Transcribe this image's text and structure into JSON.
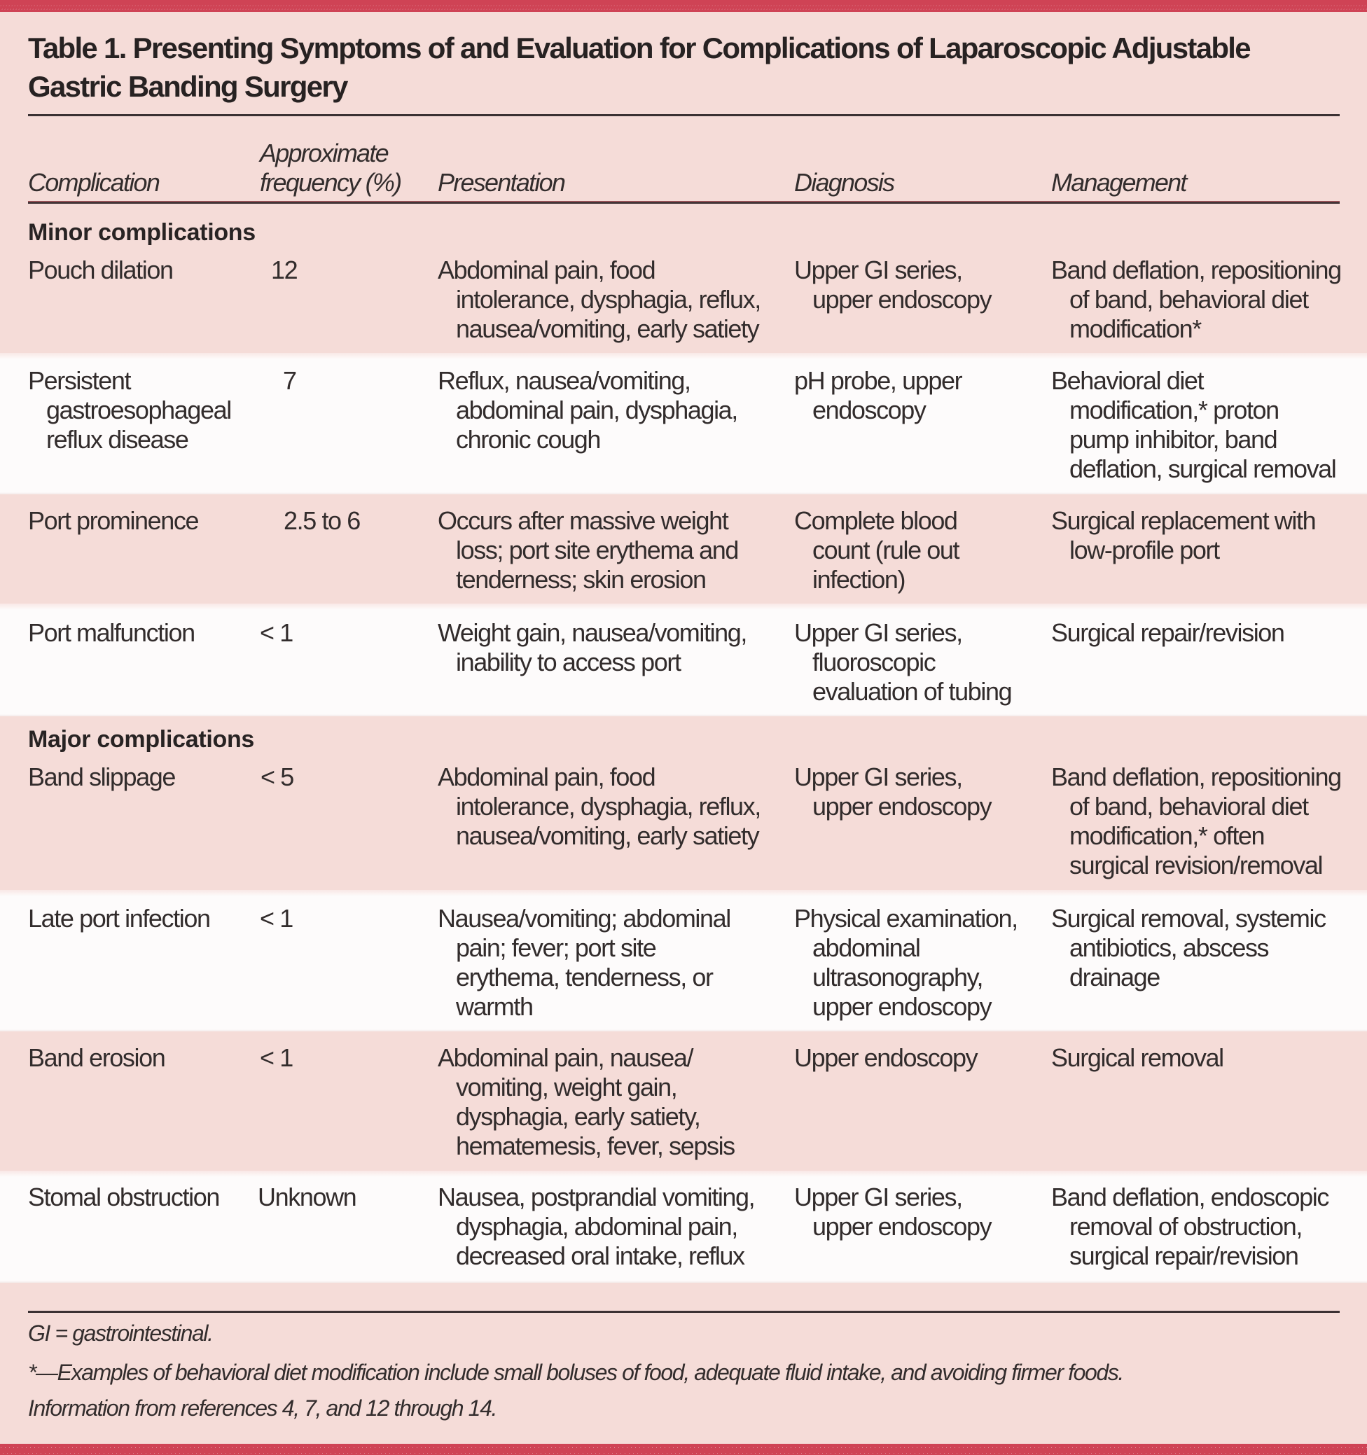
{
  "title": {
    "lines": [
      "Table 1. Presenting Symptoms of and Evaluation for Complications of Laparoscopic Adjustable",
      "Gastric Banding Surgery"
    ]
  },
  "columns": [
    {
      "id": "complication",
      "lines": [
        "Complication"
      ]
    },
    {
      "id": "frequency",
      "lines": [
        "Approximate",
        "frequency (%)"
      ]
    },
    {
      "id": "presentation",
      "lines": [
        "Presentation"
      ]
    },
    {
      "id": "diagnosis",
      "lines": [
        "Diagnosis"
      ]
    },
    {
      "id": "management",
      "lines": [
        "Management"
      ]
    }
  ],
  "sections": [
    {
      "label": "Minor complications",
      "rows": [
        {
          "complication": [
            "Pouch dilation"
          ],
          "frequency": "12",
          "presentation": [
            "Abdominal pain, food",
            "intolerance, dysphagia, reflux,",
            "nausea/vomiting, early satiety"
          ],
          "diagnosis": [
            "Upper GI series,",
            "upper endoscopy"
          ],
          "management": [
            "Band deflation, repositioning",
            "of band, behavioral diet",
            "modification*"
          ]
        },
        {
          "complication": [
            "Persistent",
            "gastroesophageal",
            "reflux disease"
          ],
          "frequency": "7",
          "presentation": [
            "Reflux, nausea/vomiting,",
            "abdominal pain, dysphagia,",
            "chronic cough"
          ],
          "diagnosis": [
            "pH probe, upper",
            "endoscopy"
          ],
          "management": [
            "Behavioral diet",
            "modification,* proton",
            "pump inhibitor, band",
            "deflation, surgical removal"
          ]
        },
        {
          "complication": [
            "Port prominence"
          ],
          "frequency": "2.5 to 6",
          "presentation": [
            "Occurs after massive weight",
            "loss; port site erythema and",
            "tenderness; skin erosion"
          ],
          "diagnosis": [
            "Complete blood",
            "count (rule out",
            "infection)"
          ],
          "management": [
            "Surgical replacement with",
            "low-profile port"
          ]
        },
        {
          "complication": [
            "Port malfunction"
          ],
          "frequency": "< 1",
          "presentation": [
            "Weight gain, nausea/vomiting,",
            "inability to access port"
          ],
          "diagnosis": [
            "Upper GI series,",
            "fluoroscopic",
            "evaluation of tubing"
          ],
          "management": [
            "Surgical repair/revision"
          ]
        }
      ]
    },
    {
      "label": "Major complications",
      "rows": [
        {
          "complication": [
            "Band slippage"
          ],
          "frequency": "< 5",
          "presentation": [
            "Abdominal pain, food",
            "intolerance, dysphagia, reflux,",
            "nausea/vomiting, early satiety"
          ],
          "diagnosis": [
            "Upper GI series,",
            "upper endoscopy"
          ],
          "management": [
            "Band deflation, repositioning",
            "of band, behavioral diet",
            "modification,* often",
            "surgical revision/removal"
          ]
        },
        {
          "complication": [
            "Late port infection"
          ],
          "frequency": "< 1",
          "presentation": [
            "Nausea/vomiting; abdominal",
            "pain; fever; port site",
            "erythema, tenderness, or",
            "warmth"
          ],
          "diagnosis": [
            "Physical examination,",
            "abdominal",
            "ultrasonography,",
            "upper endoscopy"
          ],
          "management": [
            "Surgical removal, systemic",
            "antibiotics, abscess",
            "drainage"
          ]
        },
        {
          "complication": [
            "Band erosion"
          ],
          "frequency": "< 1",
          "presentation": [
            "Abdominal pain, nausea/",
            "vomiting, weight gain,",
            "dysphagia, early satiety,",
            "hematemesis, fever, sepsis"
          ],
          "diagnosis": [
            "Upper endoscopy"
          ],
          "management": [
            "Surgical removal"
          ]
        },
        {
          "complication": [
            "Stomal obstruction"
          ],
          "frequency": "Unknown",
          "presentation": [
            "Nausea, postprandial vomiting,",
            "dysphagia, abdominal pain,",
            "decreased oral intake, reflux"
          ],
          "diagnosis": [
            "Upper GI series,",
            "upper endoscopy"
          ],
          "management": [
            "Band deflation, endoscopic",
            "removal of obstruction,",
            "surgical repair/revision"
          ]
        }
      ]
    }
  ],
  "footnotes": [
    "GI = gastrointestinal.",
    "*—Examples of behavioral diet modification include small boluses of food, adequate fluid intake, and avoiding firmer foods.",
    "Information from references 4, 7, and 12 through 14."
  ],
  "colors": {
    "accent_red": "#cf4355",
    "page_pink": "#f5dcd8",
    "row_white": "#fdfbfb",
    "text": "#2c2727",
    "rule": "#3b3133"
  }
}
